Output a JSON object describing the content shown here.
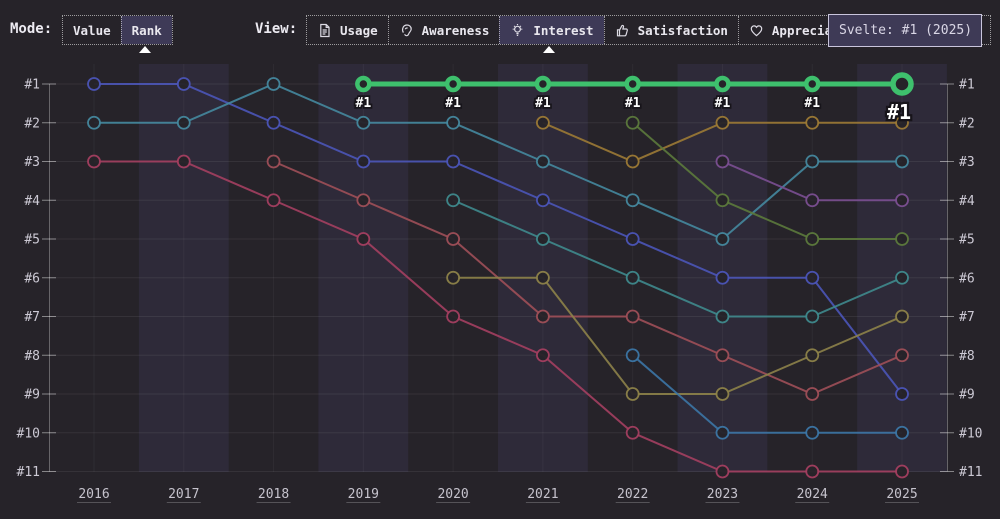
{
  "topbar": {
    "mode": {
      "label": "Mode:",
      "options": [
        {
          "label": "Value",
          "selected": false
        },
        {
          "label": "Rank",
          "selected": true
        }
      ]
    },
    "view": {
      "label": "View:",
      "options": [
        {
          "label": "Usage",
          "icon": "document-icon",
          "selected": false
        },
        {
          "label": "Awareness",
          "icon": "ear-icon",
          "selected": false
        },
        {
          "label": "Interest",
          "icon": "lightbulb-icon",
          "selected": true
        },
        {
          "label": "Satisfaction",
          "icon": "thumbs-up-icon",
          "selected": false
        },
        {
          "label": "Appreciation",
          "icon": "heart-icon",
          "selected": false
        }
      ]
    },
    "tooltip": "Svelte: #1 (2025)"
  },
  "chart_data": {
    "type": "line",
    "subtype": "rank-bump-chart",
    "x": [
      "2016",
      "2017",
      "2018",
      "2019",
      "2020",
      "2021",
      "2022",
      "2023",
      "2024",
      "2025"
    ],
    "y_axis_labels": [
      "#1",
      "#2",
      "#3",
      "#4",
      "#5",
      "#6",
      "#7",
      "#8",
      "#9",
      "#10",
      "#11"
    ],
    "y_axis_inverted": true,
    "grid": true,
    "highlight_color": "#3ec06d",
    "highlighted_series": "svelte",
    "point_label": "#1",
    "series": [
      {
        "name": "indigo-line",
        "color": "#4b55b8",
        "highlight": false,
        "ranks": [
          1,
          1,
          2,
          3,
          3,
          4,
          5,
          6,
          6,
          9
        ]
      },
      {
        "name": "teal-line",
        "color": "#45889e",
        "highlight": false,
        "ranks": [
          2,
          2,
          1,
          2,
          2,
          3,
          4,
          5,
          3,
          3
        ]
      },
      {
        "name": "crimson-line",
        "color": "#a43f60",
        "highlight": false,
        "ranks": [
          3,
          3,
          4,
          5,
          7,
          8,
          10,
          11,
          11,
          11
        ]
      },
      {
        "name": "red-line",
        "color": "#9f4f58",
        "highlight": false,
        "ranks": [
          null,
          null,
          3,
          4,
          5,
          7,
          7,
          8,
          9,
          8
        ]
      },
      {
        "name": "dark-teal-line",
        "color": "#3f8a8d",
        "highlight": false,
        "ranks": [
          null,
          null,
          null,
          null,
          4,
          5,
          6,
          7,
          7,
          6
        ]
      },
      {
        "name": "olive-line",
        "color": "#8d8249",
        "highlight": false,
        "ranks": [
          null,
          null,
          null,
          null,
          6,
          6,
          9,
          9,
          8,
          7
        ]
      },
      {
        "name": "amber-line",
        "color": "#9c7a35",
        "highlight": false,
        "ranks": [
          null,
          null,
          null,
          null,
          null,
          2,
          3,
          2,
          2,
          2
        ]
      },
      {
        "name": "dark-green-line",
        "color": "#5c7a3c",
        "highlight": false,
        "ranks": [
          null,
          null,
          null,
          null,
          null,
          null,
          2,
          4,
          5,
          5
        ]
      },
      {
        "name": "steel-blue-line",
        "color": "#3c76a6",
        "highlight": false,
        "ranks": [
          null,
          null,
          null,
          null,
          null,
          null,
          8,
          10,
          10,
          10
        ]
      },
      {
        "name": "purple-line",
        "color": "#7b4f92",
        "highlight": false,
        "ranks": [
          null,
          null,
          null,
          null,
          null,
          null,
          null,
          3,
          4,
          4
        ]
      },
      {
        "name": "svelte",
        "color": "#3ec06d",
        "highlight": true,
        "ranks": [
          null,
          null,
          null,
          1,
          1,
          1,
          1,
          1,
          1,
          1
        ],
        "point_labels": [
          "#1",
          "#1",
          "#1",
          "#1",
          "#1",
          "#1",
          "#1"
        ],
        "end_label": "#1"
      }
    ]
  }
}
